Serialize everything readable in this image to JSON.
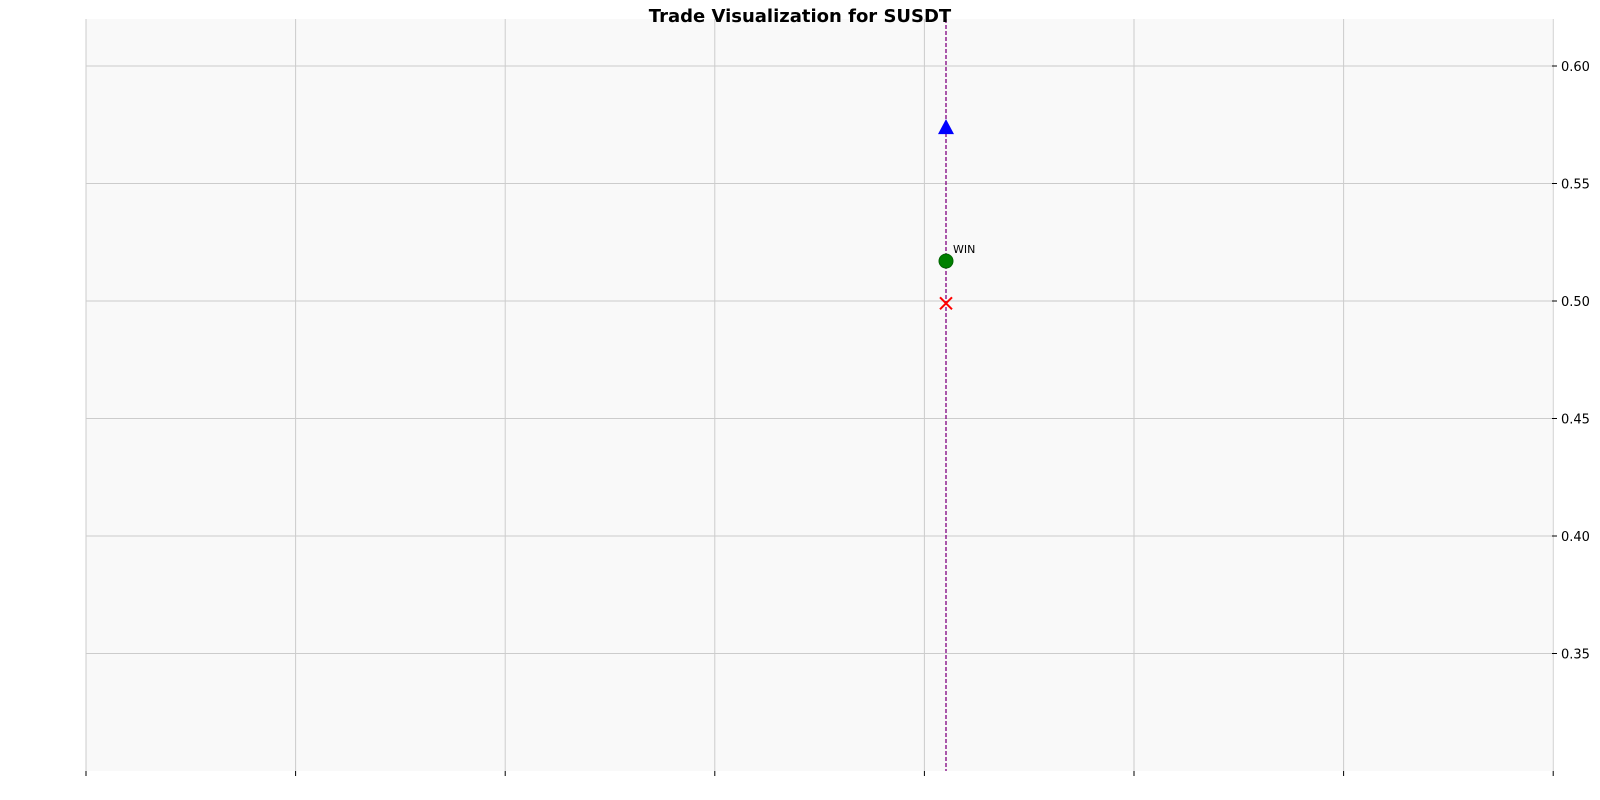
{
  "chart_data": {
    "type": "scatter",
    "title": "Trade Visualization for SUSDT",
    "xlabel": "",
    "ylabel": "",
    "y_axis_side": "right",
    "ylim": [
      0.3,
      0.62
    ],
    "y_ticks": [
      0.35,
      0.4,
      0.45,
      0.5,
      0.55,
      0.6
    ],
    "y_tick_labels": [
      "0.35",
      "0.40",
      "0.45",
      "0.50",
      "0.55",
      "0.60"
    ],
    "x_tick_count": 8,
    "grid": true,
    "trade_line_color": "#800080",
    "points": [
      {
        "name": "entry",
        "marker": "triangle-up",
        "y": 0.574,
        "color": "#0000ff"
      },
      {
        "name": "exit",
        "marker": "circle",
        "y": 0.517,
        "color": "#008000",
        "label": "WIN"
      },
      {
        "name": "stop",
        "marker": "x",
        "y": 0.499,
        "color": "#ff0000"
      }
    ]
  }
}
